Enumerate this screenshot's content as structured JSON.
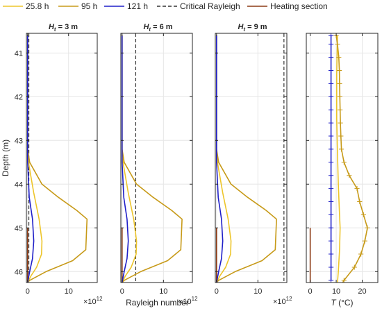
{
  "legend": {
    "entries": [
      {
        "label": "25.8 h",
        "color": "#EDC52A",
        "dash": false
      },
      {
        "label": "95 h",
        "color": "#C79A18",
        "dash": false
      },
      {
        "label": "121 h",
        "color": "#1F1FC8",
        "dash": false
      },
      {
        "label": "Critical Rayleigh",
        "color": "#333333",
        "dash": true
      },
      {
        "label": "Heating section",
        "color": "#8B3A14",
        "dash": false
      }
    ]
  },
  "chart_data": [
    {
      "type": "line",
      "title": "H_t = 3 m",
      "title_main": "H",
      "title_sub": "t",
      "title_rest": " = 3 m",
      "ylabel": "Depth (m)",
      "xlabel": "",
      "xexp": "×10",
      "xexp_power": "12",
      "xlim": [
        -0.3,
        17
      ],
      "ylim": [
        40.55,
        46.25
      ],
      "yticks": [
        41,
        42,
        43,
        44,
        45,
        46
      ],
      "xticks": [
        0,
        10
      ],
      "critical": 0.3,
      "heating": {
        "x": 0,
        "y1": 45,
        "y2": 46.25
      },
      "series": [
        {
          "name": "25.8 h",
          "color": "#EDC52A",
          "points": [
            [
              0,
              40.6
            ],
            [
              0,
              43.3
            ],
            [
              0.3,
              43.55
            ],
            [
              1.5,
              44.2
            ],
            [
              2.8,
              44.8
            ],
            [
              3.5,
              45.3
            ],
            [
              3.4,
              45.6
            ],
            [
              2.2,
              45.9
            ],
            [
              0.8,
              46.1
            ],
            [
              0,
              46.25
            ]
          ]
        },
        {
          "name": "95 h",
          "color": "#C79A18",
          "points": [
            [
              0,
              40.6
            ],
            [
              0,
              43.2
            ],
            [
              0.5,
              43.5
            ],
            [
              3.5,
              44
            ],
            [
              7.5,
              44.3
            ],
            [
              12,
              44.6
            ],
            [
              14.5,
              44.8
            ],
            [
              14.2,
              45.5
            ],
            [
              11,
              45.75
            ],
            [
              4.5,
              46
            ],
            [
              0.5,
              46.2
            ],
            [
              0,
              46.25
            ]
          ]
        },
        {
          "name": "121 h",
          "color": "#1F1FC8",
          "points": [
            [
              0,
              40.6
            ],
            [
              0,
              43.5
            ],
            [
              0.4,
              44.3
            ],
            [
              1.2,
              44.8
            ],
            [
              1.5,
              45.3
            ],
            [
              1.2,
              45.7
            ],
            [
              0.5,
              46
            ],
            [
              0,
              46.25
            ]
          ]
        }
      ]
    },
    {
      "type": "line",
      "title": "H_t = 6 m",
      "title_main": "H",
      "title_sub": "t",
      "title_rest": " = 6 m",
      "xlabel": "Rayleigh number",
      "xexp": "×10",
      "xexp_power": "12",
      "xlim": [
        -0.3,
        17
      ],
      "ylim": [
        40.55,
        46.25
      ],
      "yticks": [
        41,
        42,
        43,
        44,
        45,
        46
      ],
      "xticks": [
        0,
        10
      ],
      "critical": 3.3,
      "heating": {
        "x": 0,
        "y1": 45,
        "y2": 46.25
      },
      "series": [
        {
          "name": "25.8 h",
          "color": "#EDC52A",
          "points": [
            [
              0,
              40.6
            ],
            [
              0,
              43.3
            ],
            [
              0.3,
              43.55
            ],
            [
              1.5,
              44.2
            ],
            [
              2.8,
              44.8
            ],
            [
              3.5,
              45.3
            ],
            [
              3.4,
              45.6
            ],
            [
              2.2,
              45.9
            ],
            [
              0.8,
              46.1
            ],
            [
              0,
              46.25
            ]
          ]
        },
        {
          "name": "95 h",
          "color": "#C79A18",
          "points": [
            [
              0,
              40.6
            ],
            [
              0,
              43.2
            ],
            [
              0.5,
              43.5
            ],
            [
              3.5,
              44
            ],
            [
              7.5,
              44.3
            ],
            [
              12,
              44.6
            ],
            [
              14.5,
              44.8
            ],
            [
              14.2,
              45.5
            ],
            [
              11,
              45.75
            ],
            [
              4.5,
              46
            ],
            [
              0.5,
              46.2
            ],
            [
              0,
              46.25
            ]
          ]
        },
        {
          "name": "121 h",
          "color": "#1F1FC8",
          "points": [
            [
              0,
              40.6
            ],
            [
              0,
              43.5
            ],
            [
              0.4,
              44.3
            ],
            [
              1.2,
              44.8
            ],
            [
              1.5,
              45.3
            ],
            [
              1.2,
              45.7
            ],
            [
              0.5,
              46
            ],
            [
              0,
              46.25
            ]
          ]
        }
      ]
    },
    {
      "type": "line",
      "title": "H_t = 9 m",
      "title_main": "H",
      "title_sub": "t",
      "title_rest": " = 9 m",
      "xlabel": "",
      "xexp": "×10",
      "xexp_power": "12",
      "xlim": [
        -0.3,
        17
      ],
      "ylim": [
        40.55,
        46.25
      ],
      "yticks": [
        41,
        42,
        43,
        44,
        45,
        46
      ],
      "xticks": [
        0,
        10
      ],
      "critical": 16.3,
      "heating": {
        "x": 0,
        "y1": 45,
        "y2": 46.25
      },
      "series": [
        {
          "name": "25.8 h",
          "color": "#EDC52A",
          "points": [
            [
              0,
              40.6
            ],
            [
              0,
              43.3
            ],
            [
              0.3,
              43.55
            ],
            [
              1.5,
              44.2
            ],
            [
              2.8,
              44.8
            ],
            [
              3.5,
              45.3
            ],
            [
              3.4,
              45.6
            ],
            [
              2.2,
              45.9
            ],
            [
              0.8,
              46.1
            ],
            [
              0,
              46.25
            ]
          ]
        },
        {
          "name": "95 h",
          "color": "#C79A18",
          "points": [
            [
              0,
              40.6
            ],
            [
              0,
              43.2
            ],
            [
              0.5,
              43.5
            ],
            [
              3.5,
              44
            ],
            [
              7.5,
              44.3
            ],
            [
              12,
              44.6
            ],
            [
              14.5,
              44.8
            ],
            [
              14.2,
              45.5
            ],
            [
              11,
              45.75
            ],
            [
              4.5,
              46
            ],
            [
              0.5,
              46.2
            ],
            [
              0,
              46.25
            ]
          ]
        },
        {
          "name": "121 h",
          "color": "#1F1FC8",
          "points": [
            [
              0,
              40.6
            ],
            [
              0,
              43.5
            ],
            [
              0.4,
              44.3
            ],
            [
              1.2,
              44.8
            ],
            [
              1.5,
              45.3
            ],
            [
              1.2,
              45.7
            ],
            [
              0.5,
              46
            ],
            [
              0,
              46.25
            ]
          ]
        }
      ]
    },
    {
      "type": "line",
      "title": "",
      "xlabel": "T (°C)",
      "xlabel_main": "T",
      "xlabel_rest": " (°C)",
      "xlim": [
        -1.5,
        26
      ],
      "ylim": [
        40.55,
        46.25
      ],
      "yticks": [
        41,
        42,
        43,
        44,
        45,
        46
      ],
      "xticks": [
        0,
        10,
        20
      ],
      "heating": {
        "x": 0,
        "y1": 45,
        "y2": 46.25
      },
      "series": [
        {
          "name": "121 h",
          "color": "#1F1FC8",
          "marker": "+",
          "points": [
            [
              8,
              40.6
            ],
            [
              8,
              40.8
            ],
            [
              8,
              41.1
            ],
            [
              8,
              41.4
            ],
            [
              8,
              41.7
            ],
            [
              8,
              42.0
            ],
            [
              8,
              42.3
            ],
            [
              8,
              42.6
            ],
            [
              8,
              42.9
            ],
            [
              8,
              43.2
            ],
            [
              8,
              43.5
            ],
            [
              8,
              43.8
            ],
            [
              8,
              44.1
            ],
            [
              8,
              44.4
            ],
            [
              8,
              44.7
            ],
            [
              8,
              45.0
            ],
            [
              8,
              45.3
            ],
            [
              8,
              45.6
            ],
            [
              8,
              45.9
            ],
            [
              8,
              46.2
            ]
          ]
        },
        {
          "name": "25.8 h",
          "color": "#EDC52A",
          "marker": "",
          "points": [
            [
              10.5,
              40.6
            ],
            [
              10.2,
              41.5
            ],
            [
              10.2,
              42.5
            ],
            [
              10.5,
              43.3
            ],
            [
              10.8,
              44
            ],
            [
              11.2,
              44.6
            ],
            [
              11.5,
              45
            ],
            [
              11.3,
              45.5
            ],
            [
              10.8,
              46
            ],
            [
              10.5,
              46.25
            ]
          ]
        },
        {
          "name": "95 h",
          "color": "#C79A18",
          "marker": "+",
          "points": [
            [
              10,
              40.6
            ],
            [
              10.5,
              40.8
            ],
            [
              11,
              41.1
            ],
            [
              11.2,
              41.4
            ],
            [
              11.3,
              41.7
            ],
            [
              11.4,
              42.0
            ],
            [
              11.5,
              42.3
            ],
            [
              11.6,
              42.6
            ],
            [
              11.8,
              42.9
            ],
            [
              12,
              43.2
            ],
            [
              13,
              43.5
            ],
            [
              15,
              43.8
            ],
            [
              18,
              44.1
            ],
            [
              19,
              44.4
            ],
            [
              20.5,
              44.7
            ],
            [
              22,
              45.0
            ],
            [
              21,
              45.3
            ],
            [
              19.5,
              45.6
            ],
            [
              17,
              45.9
            ],
            [
              13,
              46.2
            ],
            [
              12.5,
              46.25
            ]
          ]
        }
      ]
    }
  ]
}
